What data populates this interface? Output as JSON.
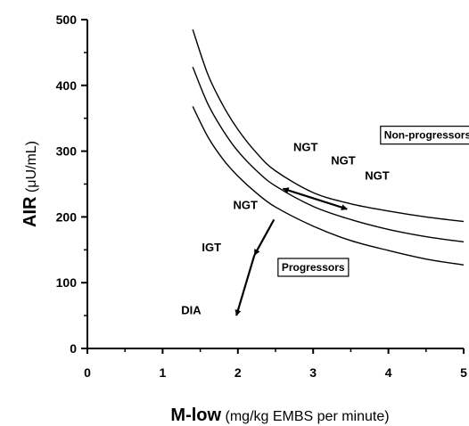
{
  "chart_data": {
    "type": "line",
    "title": "",
    "xlabel": {
      "main": "M-low",
      "unit": "(mg/kg EMBS per minute)"
    },
    "ylabel": {
      "main": "AIR",
      "unit": "(μU/mL)"
    },
    "xlim": [
      0,
      5
    ],
    "ylim": [
      0,
      500
    ],
    "xticks": [
      "0",
      "1",
      "2",
      "3",
      "4",
      "5"
    ],
    "yticks": [
      "0",
      "100",
      "200",
      "300",
      "400",
      "500"
    ],
    "grid": false,
    "series": [
      {
        "x": [
          1.4,
          1.6,
          1.8,
          2.0,
          2.25,
          2.5,
          3.0,
          3.5,
          4.0,
          4.5,
          5.0
        ],
        "y": [
          485,
          417,
          370,
          333,
          297,
          270,
          237,
          220,
          209,
          200,
          193
        ]
      },
      {
        "x": [
          1.4,
          1.6,
          1.8,
          2.0,
          2.25,
          2.5,
          3.0,
          3.5,
          4.0,
          4.5,
          5.0
        ],
        "y": [
          428,
          372,
          332,
          300,
          270,
          247,
          216,
          196,
          181,
          170,
          162
        ]
      },
      {
        "x": [
          1.4,
          1.6,
          1.8,
          2.0,
          2.25,
          2.5,
          3.0,
          3.5,
          4.0,
          4.5,
          5.0
        ],
        "y": [
          368,
          322,
          288,
          262,
          236,
          215,
          186,
          164,
          149,
          136,
          127
        ]
      }
    ],
    "annotations": [
      {
        "text": "NGT",
        "x": 2.9,
        "y": 300
      },
      {
        "text": "NGT",
        "x": 3.4,
        "y": 280
      },
      {
        "text": "NGT",
        "x": 3.85,
        "y": 257
      },
      {
        "text": "NGT",
        "x": 2.1,
        "y": 212
      },
      {
        "text": "IGT",
        "x": 1.65,
        "y": 148
      },
      {
        "text": "DIA",
        "x": 1.38,
        "y": 52
      }
    ],
    "boxes": [
      {
        "text": "Non-progressors",
        "x": 4.52,
        "y": 325
      },
      {
        "text": "Progressors",
        "x": 3.0,
        "y": 124
      }
    ],
    "arrows": [
      {
        "x1": 2.6,
        "y1": 243,
        "x2": 3.45,
        "y2": 212,
        "head": "both"
      },
      {
        "x1": 2.48,
        "y1": 196,
        "x2": 2.22,
        "y2": 142,
        "head": "end"
      },
      {
        "x1": 2.22,
        "y1": 142,
        "x2": 1.98,
        "y2": 50,
        "head": "end"
      }
    ]
  }
}
